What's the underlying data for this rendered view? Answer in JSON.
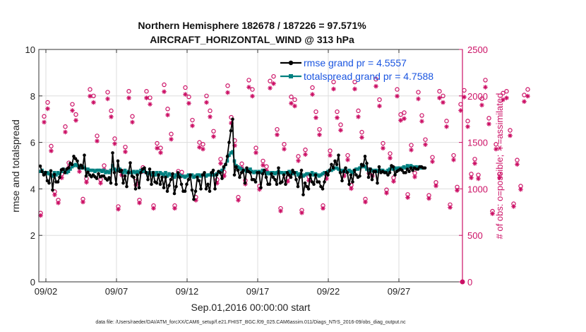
{
  "chart_data": {
    "type": "line",
    "title_line1": "Northern Hemisphere 182678 / 187226 = 97.571%",
    "title_line2": "AIRCRAFT_HORIZONTAL_WIND @ 313 hPa",
    "xlabel": "Sep.01,2016 00:00:00 start",
    "ylabel_left": "rmse and totalspread",
    "ylabel_right": "# of obs: o=possible; ∗=assimilated",
    "footnote": "data file: /Users/raeder/DAI/ATM_forcXX/CAM6_setup/f.e21.FHIST_BGC.f09_025.CAM6assim.011/Diags_NTrS_2016-09/obs_diag_output.nc",
    "x_range_days": [
      0.5,
      30.5
    ],
    "ylim_left": [
      0,
      10
    ],
    "ylim_right": [
      0,
      2500
    ],
    "x_ticks": [
      {
        "day": 1.0,
        "label": "09/02"
      },
      {
        "day": 6.0,
        "label": "09/07"
      },
      {
        "day": 11.0,
        "label": "09/12"
      },
      {
        "day": 16.0,
        "label": "09/17"
      },
      {
        "day": 21.0,
        "label": "09/22"
      },
      {
        "day": 26.0,
        "label": "09/27"
      }
    ],
    "y_ticks_left": [
      0,
      2,
      4,
      6,
      8,
      10
    ],
    "y_ticks_right": [
      0,
      500,
      1000,
      1500,
      2000,
      2500
    ],
    "legend": [
      {
        "name": "rmse grand pr = 4.5557",
        "color": "#000000"
      },
      {
        "name": "totalspread grand pr = 4.7588",
        "color": "#008080"
      }
    ],
    "colors": {
      "rmse": "#000000",
      "spread": "#008080",
      "obs": "#cc1166",
      "axis": "#333333"
    },
    "series": [
      {
        "name": "rmse",
        "step_days": 0.125,
        "values": [
          4.98,
          4.75,
          4.6,
          4.71,
          4.35,
          4.25,
          4.78,
          3.95,
          4.62,
          4.3,
          4.3,
          4.5,
          4.82,
          4.85,
          4.7,
          4.85,
          4.9,
          5.1,
          5.05,
          5.4,
          5.3,
          5.2,
          4.9,
          5.02,
          4.9,
          5.45,
          4.55,
          4.72,
          4.6,
          4.52,
          4.6,
          4.52,
          4.45,
          4.65,
          4.52,
          4.55,
          4.55,
          4.45,
          4.38,
          4.48,
          4.25,
          5.55,
          4.7,
          4.2,
          5.2,
          4.75,
          4.8,
          4.25,
          4.55,
          4.1,
          4.7,
          5.12,
          4.55,
          4.5,
          4.0,
          4.6,
          4.05,
          4.7,
          4.85,
          4.9,
          4.7,
          4.4,
          4.85,
          4.2,
          4.7,
          4.3,
          4.25,
          4.6,
          4.2,
          4.5,
          4.05,
          4.5,
          3.9,
          4.15,
          4.4,
          4.65,
          3.8,
          4.1,
          4.7,
          4.5,
          4.2,
          3.9,
          3.9,
          4.2,
          4.4,
          4.6,
          3.95,
          3.55,
          3.9,
          4.5,
          4.35,
          4.0,
          4.6,
          4.7,
          4.0,
          4.2,
          3.9,
          4.7,
          4.8,
          4.0,
          4.6,
          4.75,
          4.7,
          4.45,
          4.95,
          5.05,
          5.4,
          6.0,
          6.5,
          7.0,
          4.6,
          4.95,
          4.8,
          4.5,
          4.7,
          4.8,
          4.25,
          4.9,
          4.75,
          4.7,
          4.4,
          4.4,
          4.3,
          4.7,
          4.7,
          4.05,
          4.65,
          4.8,
          4.5,
          4.2,
          4.2,
          4.65,
          4.5,
          4.4,
          4.2,
          4.9,
          4.25,
          4.3,
          4.6,
          4.2,
          4.7,
          4.6,
          4.5,
          4.8,
          4.7,
          4.4,
          4.1,
          4.5,
          4.8,
          3.75,
          4.25,
          4.1,
          4.0,
          4.6,
          4.3,
          4.2,
          4.6,
          4.3,
          4.3,
          4.1,
          4.0,
          4.3,
          4.7,
          4.6,
          4.8,
          5.05,
          4.9,
          5.2,
          5.05,
          5.45,
          4.7,
          4.35,
          4.75,
          4.9,
          4.7,
          4.2,
          4.6,
          4.3,
          4.8,
          4.6,
          4.5,
          4.55,
          5.05,
          5.0,
          5.4,
          5.1,
          4.5,
          4.85,
          4.4,
          4.75,
          4.75,
          4.25,
          4.95,
          4.7,
          4.75,
          4.7,
          4.7,
          4.6,
          4.7,
          5.0,
          4.95,
          4.6,
          4.75,
          4.8,
          4.85,
          4.8,
          4.7,
          4.7,
          4.85,
          4.75,
          4.9,
          4.8,
          4.9,
          4.85,
          4.85,
          4.95,
          4.95,
          4.9,
          4.9
        ]
      },
      {
        "name": "totalspread",
        "step_days": 0.125,
        "values": [
          4.75,
          4.8,
          4.7,
          4.65,
          4.7,
          4.65,
          4.6,
          4.55,
          4.7,
          4.6,
          4.7,
          4.65,
          4.75,
          4.85,
          4.75,
          4.7,
          4.75,
          4.85,
          4.95,
          5.0,
          5.05,
          5.0,
          4.95,
          4.9,
          4.95,
          4.9,
          4.85,
          4.85,
          4.8,
          4.8,
          4.8,
          4.75,
          4.8,
          4.8,
          4.8,
          4.75,
          4.8,
          4.7,
          4.75,
          4.7,
          4.8,
          5.0,
          4.85,
          4.8,
          4.8,
          4.85,
          4.75,
          4.7,
          4.8,
          4.7,
          4.75,
          4.7,
          4.7,
          4.75,
          4.7,
          4.75,
          4.7,
          4.8,
          4.75,
          4.8,
          4.7,
          4.65,
          4.7,
          4.6,
          4.7,
          4.6,
          4.7,
          4.6,
          4.7,
          4.65,
          4.6,
          4.7,
          4.55,
          4.65,
          4.6,
          4.6,
          4.5,
          4.6,
          4.55,
          4.6,
          4.55,
          4.55,
          4.5,
          4.55,
          4.6,
          4.55,
          4.6,
          4.5,
          4.55,
          4.6,
          4.6,
          4.55,
          4.6,
          4.6,
          4.55,
          4.6,
          4.6,
          4.65,
          4.6,
          4.6,
          4.65,
          4.7,
          4.75,
          4.8,
          4.9,
          5.05,
          5.2,
          5.45,
          5.55,
          5.6,
          5.2,
          5.0,
          4.95,
          4.9,
          4.85,
          4.8,
          4.8,
          4.75,
          4.8,
          4.85,
          4.75,
          4.7,
          4.75,
          4.7,
          4.75,
          4.7,
          4.8,
          4.75,
          4.65,
          4.7,
          4.65,
          4.7,
          4.7,
          4.65,
          4.7,
          4.75,
          4.7,
          4.7,
          4.65,
          4.7,
          4.7,
          4.75,
          4.7,
          4.65,
          4.7,
          4.7,
          4.6,
          4.65,
          4.6,
          4.55,
          4.6,
          4.65,
          4.65,
          4.6,
          4.7,
          4.6,
          4.65,
          4.6,
          4.55,
          4.6,
          4.65,
          4.7,
          4.7,
          4.75,
          4.8,
          4.8,
          4.85,
          4.9,
          4.9,
          4.85,
          4.8,
          4.75,
          4.8,
          4.75,
          4.75,
          4.8,
          4.75,
          4.7,
          4.8,
          4.85,
          4.85,
          4.9,
          4.95,
          5.0,
          4.95,
          4.85,
          4.8,
          4.85,
          4.8,
          4.75,
          4.8,
          4.75,
          4.8,
          4.8,
          4.8,
          4.75,
          4.7,
          4.8,
          4.85,
          4.9,
          4.85,
          4.9,
          4.85,
          4.9,
          4.85,
          4.9,
          4.95,
          4.9,
          5.0,
          4.95,
          5.0,
          4.95,
          4.9,
          4.95,
          4.9,
          4.95,
          4.9,
          4.9
        ]
      }
    ],
    "obs_points": {
      "step_days": 0.25,
      "possible": [
        740,
        1780,
        1930,
        1460,
        970,
        880,
        1160,
        1670,
        1280,
        1910,
        1800,
        1230,
        890,
        1110,
        2070,
        2000,
        1570,
        1100,
        1250,
        2040,
        1840,
        1540,
        810,
        1190,
        1450,
        2050,
        1780,
        1080,
        880,
        1230,
        2050,
        1980,
        820,
        1490,
        1440,
        2120,
        1860,
        1590,
        820,
        1190,
        1180,
        2090,
        1990,
        1740,
        910,
        1500,
        1480,
        2000,
        1840,
        1620,
        1100,
        1320,
        1180,
        2110,
        1770,
        1520,
        910,
        1270,
        1090,
        2170,
        2070,
        1440,
        1030,
        1300,
        1240,
        2160,
        2210,
        1640,
        790,
        1480,
        1120,
        1990,
        1960,
        1350,
        770,
        1420,
        1130,
        2090,
        1830,
        1640,
        820,
        1150,
        1410,
        2150,
        1830,
        1690,
        1180,
        1360,
        1040,
        2150,
        1840,
        1610,
        890,
        1210,
        1180,
        2180,
        1960,
        1490,
        990,
        1380,
        1120,
        2070,
        1800,
        1820,
        940,
        1470,
        1170,
        2040,
        1790,
        1530,
        930,
        1340,
        1070,
        2050,
        2000,
        1730,
        830,
        1360,
        1020,
        1910,
        2060,
        1730,
        1160,
        1320,
        1150,
        1970,
        2170,
        1760,
        760,
        1480,
        1160,
        2030,
        2050,
        1630,
        840,
        1310,
        1030,
        2010,
        2070
      ]
    },
    "final_point": {
      "day": 30.5,
      "value": 0
    }
  }
}
